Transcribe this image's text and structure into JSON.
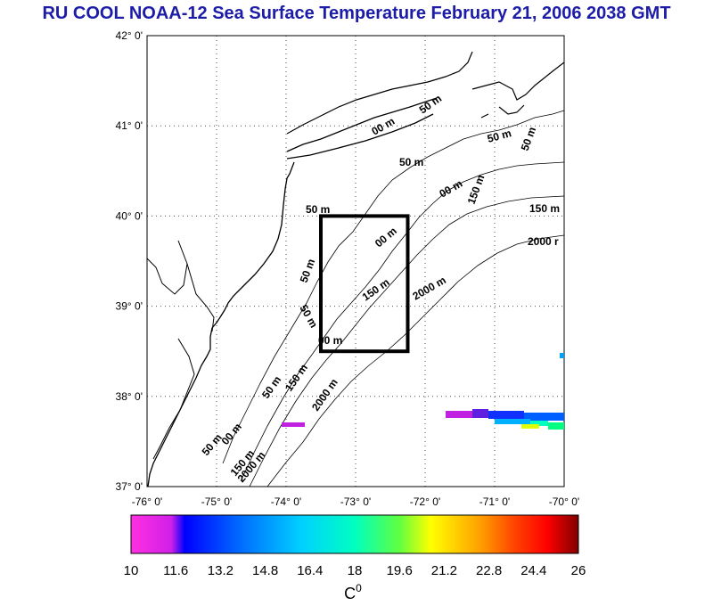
{
  "title": "RU COOL  NOAA-12 Sea Surface Temperature February 21, 2006 2038 GMT",
  "map": {
    "lat_range": [
      37,
      42
    ],
    "lon_range": [
      -76,
      -70
    ],
    "lat_labels": [
      "42° 0'",
      "41° 0'",
      "40° 0'",
      "39° 0'",
      "38° 0'",
      "37° 0'"
    ],
    "lon_labels": [
      "-76° 0'",
      "-75° 0'",
      "-74° 0'",
      "-73° 0'",
      "-72° 0'",
      "-71° 0'",
      "-70° 0'"
    ],
    "grid": "dotted",
    "contour_labels": [
      "50 m",
      "50 m",
      "50 m",
      "50 m",
      "50 m",
      "50 m",
      "50 m",
      "50 m",
      "00 m",
      "00 m",
      "00 m",
      "00 m",
      "150 m",
      "150 m",
      "150 m",
      "150 m",
      "150 m",
      "2000 m",
      "2000 m",
      "2000 m",
      "2000 r",
      "00 m",
      "50 m"
    ],
    "box": {
      "lon": [
        -73.5,
        -72.25
      ],
      "lat": [
        38.5,
        40.0
      ]
    }
  },
  "colorbar": {
    "ticks": [
      "10",
      "11.6",
      "13.2",
      "14.8",
      "16.4",
      "18",
      "19.6",
      "21.2",
      "22.8",
      "24.4",
      "26"
    ],
    "range": [
      10,
      26
    ],
    "unit": "C",
    "unit_superscript": "0",
    "colors": [
      "#ff30e0",
      "#d020e8",
      "#0000ff",
      "#0070ff",
      "#00d0ff",
      "#00ffc0",
      "#60ff40",
      "#ffff00",
      "#ffa000",
      "#ff4000",
      "#ff0000",
      "#800000"
    ]
  }
}
